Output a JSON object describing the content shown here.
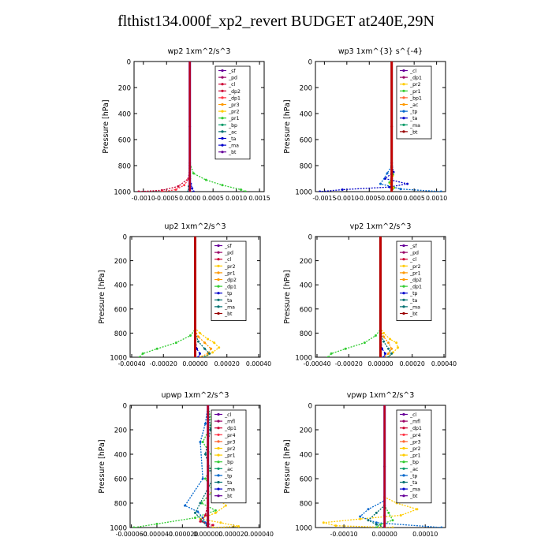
{
  "title": "flthist134.000f_xp2_revert  BUDGET at240E,29N",
  "colors": {
    "axis": "#000000",
    "budget": "#cc0000"
  },
  "chart_data": [
    {
      "type": "line",
      "title": "wp2   1xm^2/s^3",
      "ylabel": "Pressure [hPa]",
      "ylim": [
        1000,
        0
      ],
      "xlim": [
        -0.0012,
        0.0016
      ],
      "xticks": [
        "-0.0010",
        "-0.0005",
        "0.0000",
        "0.0005",
        "0.0010",
        "0.0015"
      ],
      "xtick_values": [
        -0.001,
        -0.0005,
        0.0,
        0.0005,
        0.001,
        0.0015
      ],
      "yticks": [
        0,
        200,
        400,
        600,
        800,
        1000
      ],
      "legend": [
        "_sf",
        "_pd",
        "_cl",
        "_dp2",
        "_dp1",
        "_pr3",
        "_pr2",
        "_pr1",
        "_bp",
        "_ac",
        "_ta",
        "_ma",
        "_bt"
      ],
      "series": [
        {
          "name": "_dp2",
          "color": "#cc0033",
          "x": [
            0,
            0,
            -3e-05,
            -0.00025,
            -0.0006,
            -0.0011
          ],
          "y": [
            0,
            800,
            900,
            960,
            990,
            1000
          ]
        },
        {
          "name": "_dp1",
          "color": "#ff3344",
          "x": [
            0,
            0,
            -2e-05,
            -0.00012,
            -0.0003,
            -0.0006
          ],
          "y": [
            0,
            820,
            900,
            950,
            985,
            1000
          ]
        },
        {
          "name": "_pr1",
          "color": "#33cc33",
          "x": [
            0,
            0,
            8e-05,
            0.00035,
            0.0007,
            0.0011,
            0.0012
          ],
          "y": [
            0,
            780,
            860,
            910,
            950,
            985,
            1000
          ]
        },
        {
          "name": "_ta",
          "color": "#0000cc",
          "x": [
            0,
            0,
            2e-05,
            5e-05,
            8e-05
          ],
          "y": [
            0,
            880,
            940,
            975,
            1000
          ]
        },
        {
          "name": "_ac",
          "color": "#007070",
          "x": [
            0,
            0,
            -2e-05,
            -4e-05
          ],
          "y": [
            0,
            900,
            960,
            1000
          ]
        },
        {
          "name": "_bt",
          "color": "#660099",
          "x": [
            0,
            0,
            0,
            0
          ],
          "y": [
            0,
            500,
            900,
            1000
          ]
        }
      ]
    },
    {
      "type": "line",
      "title": "wp3   1xm^{3} s^{-4}",
      "ylabel": "Pressure [hPa]",
      "ylim": [
        1000,
        0
      ],
      "xlim": [
        -0.0017,
        0.0012
      ],
      "xticks": [
        "-0.0015",
        "-0.0010",
        "-0.0005",
        "0.0000",
        "0.0005",
        "0.0010"
      ],
      "xtick_values": [
        -0.0015,
        -0.001,
        -0.0005,
        0.0,
        0.0005,
        0.001
      ],
      "yticks": [
        0,
        200,
        400,
        600,
        800,
        1000
      ],
      "legend": [
        "_cl",
        "_dp1",
        "_pr2",
        "_pr1",
        "_bp1",
        "_ac",
        "_tp",
        "_ta",
        "_ma",
        "_bt"
      ],
      "series": [
        {
          "name": "_ta",
          "color": "#0000cc",
          "x": [
            0,
            0,
            4e-05,
            -0.00015,
            0.00035,
            -5e-05,
            -0.0011,
            -0.0016
          ],
          "y": [
            0,
            780,
            850,
            900,
            940,
            965,
            985,
            1000
          ]
        },
        {
          "name": "_tp",
          "color": "#0066cc",
          "x": [
            0,
            0,
            -0.0001,
            -0.00025,
            0.0002,
            0.0011
          ],
          "y": [
            0,
            800,
            860,
            940,
            980,
            1000
          ]
        },
        {
          "name": "_pr1",
          "color": "#33cc33",
          "x": [
            0,
            0,
            3e-05,
            -5e-05,
            5e-05,
            0
          ],
          "y": [
            0,
            800,
            870,
            930,
            970,
            1000
          ]
        },
        {
          "name": "_pr2",
          "color": "#ffcc00",
          "x": [
            0,
            0,
            2e-05,
            -3e-05,
            3e-05,
            0
          ],
          "y": [
            0,
            820,
            880,
            940,
            970,
            1000
          ]
        },
        {
          "name": "_bt",
          "color": "#990000",
          "x": [
            0,
            0,
            0,
            0
          ],
          "y": [
            0,
            500,
            900,
            1000
          ]
        }
      ]
    },
    {
      "type": "line",
      "title": "up2   1xm^2/s^3",
      "ylabel": "Pressure [hPa]",
      "ylim": [
        1000,
        0
      ],
      "xlim": [
        -0.00041,
        0.00041
      ],
      "xticks": [
        "-0.00040",
        "-0.00020",
        "0.00000",
        "0.00020",
        "0.00040"
      ],
      "xtick_values": [
        -0.0004,
        -0.0002,
        0.0,
        0.0002,
        0.0004
      ],
      "yticks": [
        0,
        200,
        400,
        600,
        800,
        1000
      ],
      "legend": [
        "_sf",
        "_pd",
        "_cl",
        "_pr2",
        "_pr1",
        "_dp2",
        "_dp1",
        "_tp",
        "_ta",
        "_ma",
        "_bt"
      ],
      "series": [
        {
          "name": "_dp1",
          "color": "#33cc33",
          "x": [
            0,
            0,
            -3e-05,
            -0.00012,
            -0.00024,
            -0.00033,
            -0.00035
          ],
          "y": [
            0,
            770,
            820,
            880,
            930,
            970,
            1000
          ]
        },
        {
          "name": "_pr2",
          "color": "#ffcc00",
          "x": [
            0,
            0,
            3e-05,
            8e-05,
            0.00012,
            0.00015,
            0.00011,
            6e-05
          ],
          "y": [
            0,
            760,
            800,
            850,
            880,
            920,
            960,
            1000
          ]
        },
        {
          "name": "_pr1",
          "color": "#ff9900",
          "x": [
            0,
            0,
            2e-05,
            6e-05,
            0.0001,
            8e-05,
            3e-05
          ],
          "y": [
            0,
            780,
            830,
            880,
            930,
            970,
            1000
          ]
        },
        {
          "name": "_ta",
          "color": "#007070",
          "x": [
            0,
            0,
            2e-05,
            6e-05,
            9e-05,
            6e-05
          ],
          "y": [
            0,
            800,
            870,
            930,
            970,
            1000
          ]
        },
        {
          "name": "_tp",
          "color": "#0000cc",
          "x": [
            0,
            0,
            1e-05,
            3e-05,
            2e-05
          ],
          "y": [
            0,
            850,
            930,
            970,
            1000
          ]
        },
        {
          "name": "_bt",
          "color": "#990000",
          "x": [
            0,
            0,
            0,
            0
          ],
          "y": [
            0,
            500,
            900,
            1000
          ]
        }
      ]
    },
    {
      "type": "line",
      "title": "vp2   1xm^2/s^3",
      "ylabel": "Pressure [hPa]",
      "ylim": [
        1000,
        0
      ],
      "xlim": [
        -0.00041,
        0.00041
      ],
      "xticks": [
        "-0.00040",
        "-0.00020",
        "0.00000",
        "0.00020",
        "0.00040"
      ],
      "xtick_values": [
        -0.0004,
        -0.0002,
        0.0,
        0.0002,
        0.0004
      ],
      "yticks": [
        0,
        200,
        400,
        600,
        800,
        1000
      ],
      "legend": [
        "_sf",
        "_pd",
        "_cl",
        "_pr2",
        "_pr1",
        "_dp2",
        "_dp1",
        "_tp",
        "_ta",
        "_ma",
        "_bt"
      ],
      "series": [
        {
          "name": "_dp1",
          "color": "#33cc33",
          "x": [
            0,
            0,
            -3e-05,
            -0.0001,
            -0.00022,
            -0.00031,
            -0.00033
          ],
          "y": [
            0,
            770,
            820,
            880,
            930,
            970,
            1000
          ]
        },
        {
          "name": "_pr2",
          "color": "#ffcc00",
          "x": [
            0,
            0,
            2e-05,
            6e-05,
            0.0001,
            0.00011,
            8e-05,
            5e-05
          ],
          "y": [
            0,
            760,
            800,
            850,
            880,
            920,
            960,
            1000
          ]
        },
        {
          "name": "_pr1",
          "color": "#ff9900",
          "x": [
            0,
            0,
            2e-05,
            5e-05,
            7e-05,
            5e-05,
            2e-05
          ],
          "y": [
            0,
            780,
            830,
            880,
            930,
            970,
            1000
          ]
        },
        {
          "name": "_ta",
          "color": "#007070",
          "x": [
            0,
            0,
            2e-05,
            5e-05,
            7e-05,
            5e-05
          ],
          "y": [
            0,
            800,
            870,
            930,
            970,
            1000
          ]
        },
        {
          "name": "_tp",
          "color": "#0000cc",
          "x": [
            0,
            0,
            1e-05,
            3e-05,
            2e-05
          ],
          "y": [
            0,
            850,
            930,
            970,
            1000
          ]
        },
        {
          "name": "_bt",
          "color": "#990000",
          "x": [
            0,
            0,
            0,
            0
          ],
          "y": [
            0,
            500,
            900,
            1000
          ]
        }
      ]
    },
    {
      "type": "line",
      "title": "upwp   1xm^2/s^3",
      "ylabel": "Pressure [hPa]",
      "ylim": [
        1000,
        0
      ],
      "xlim": [
        -6.1e-05,
        4.1e-05
      ],
      "xticks": [
        "-0.000060",
        "-0.000040",
        "-0.000020",
        "0.000000",
        "0.000020",
        "0.000040"
      ],
      "xtick_values": [
        -6e-05,
        -4e-05,
        -2e-05,
        0.0,
        2e-05,
        4e-05
      ],
      "yticks": [
        0,
        200,
        400,
        600,
        800,
        1000
      ],
      "legend": [
        "_cl",
        "_mfl",
        "_dp1",
        "_pr4",
        "_pr3",
        "_pr2",
        "_pr1",
        "_bp",
        "_ac",
        "_tp",
        "_ta",
        "_ma",
        "_bt"
      ],
      "series": [
        {
          "name": "_bp",
          "color": "#33cc33",
          "x": [
            0,
            3e-06,
            -4e-06,
            5e-06,
            -2e-06,
            4e-06,
            -5e-06,
            6e-06,
            -1e-05,
            -4e-05,
            -5.8e-05
          ],
          "y": [
            0,
            150,
            300,
            450,
            600,
            700,
            800,
            860,
            920,
            970,
            1000
          ]
        },
        {
          "name": "_pr2",
          "color": "#ffcc00",
          "x": [
            0,
            0,
            6e-06,
            1.4e-05,
            6e-06,
            -6e-06,
            1e-05,
            2.4e-05,
            4e-06
          ],
          "y": [
            0,
            700,
            740,
            820,
            880,
            930,
            960,
            990,
            1000
          ]
        },
        {
          "name": "_tp",
          "color": "#0066cc",
          "x": [
            0,
            -2e-06,
            -6e-06,
            -4e-06,
            -1.8e-05,
            -8e-06,
            -4e-06,
            -2e-06,
            0
          ],
          "y": [
            0,
            150,
            300,
            600,
            820,
            870,
            920,
            960,
            1000
          ]
        },
        {
          "name": "_ta",
          "color": "#007070",
          "x": [
            0,
            2e-06,
            -2e-06,
            4e-06,
            -6e-06,
            -1e-05,
            -4e-06,
            0
          ],
          "y": [
            0,
            200,
            400,
            600,
            800,
            880,
            950,
            1000
          ]
        },
        {
          "name": "_dp1",
          "color": "#cc0033",
          "x": [
            0,
            0,
            -2e-06,
            -6e-06,
            4e-06,
            0
          ],
          "y": [
            0,
            800,
            900,
            950,
            980,
            1000
          ]
        },
        {
          "name": "_bt",
          "color": "#660099",
          "x": [
            0,
            0,
            0,
            0
          ],
          "y": [
            0,
            500,
            900,
            1000
          ]
        }
      ]
    },
    {
      "type": "line",
      "title": "vpwp   1xm^2/s^3",
      "ylabel": "Pressure [hPa]",
      "ylim": [
        1000,
        0
      ],
      "xlim": [
        -0.00017,
        0.00015
      ],
      "xticks": [
        "-0.00010",
        "0.00000",
        "0.00010"
      ],
      "xtick_values": [
        -0.0001,
        0.0,
        0.0001
      ],
      "yticks": [
        0,
        200,
        400,
        600,
        800,
        1000
      ],
      "legend": [
        "_cl",
        "_mfl",
        "_dp1",
        "_pr4",
        "_pr3",
        "_pr2",
        "_pr1",
        "_bp",
        "_ac",
        "_tp",
        "_ta",
        "_ma",
        "_bt"
      ],
      "series": [
        {
          "name": "_pr2",
          "color": "#ffcc00",
          "x": [
            0,
            0,
            3e-05,
            8e-05,
            4e-05,
            -6e-05,
            -0.00015,
            -0.00012,
            2e-05
          ],
          "y": [
            0,
            750,
            800,
            850,
            900,
            930,
            960,
            985,
            1000
          ]
        },
        {
          "name": "_tp",
          "color": "#0066cc",
          "x": [
            0,
            0,
            -4e-05,
            -6e-05,
            -2e-05,
            0.00014
          ],
          "y": [
            0,
            780,
            850,
            910,
            960,
            1000
          ]
        },
        {
          "name": "_bp",
          "color": "#33cc33",
          "x": [
            0,
            0,
            1e-05,
            2e-05,
            -1e-05,
            -2e-05
          ],
          "y": [
            0,
            820,
            880,
            940,
            975,
            1000
          ]
        },
        {
          "name": "_ta",
          "color": "#007070",
          "x": [
            0,
            0,
            -2e-05,
            -4e-05,
            -2e-05,
            0
          ],
          "y": [
            0,
            820,
            880,
            940,
            975,
            1000
          ]
        },
        {
          "name": "_bt",
          "color": "#660099",
          "x": [
            0,
            0,
            0,
            0
          ],
          "y": [
            0,
            500,
            900,
            1000
          ]
        }
      ]
    }
  ]
}
